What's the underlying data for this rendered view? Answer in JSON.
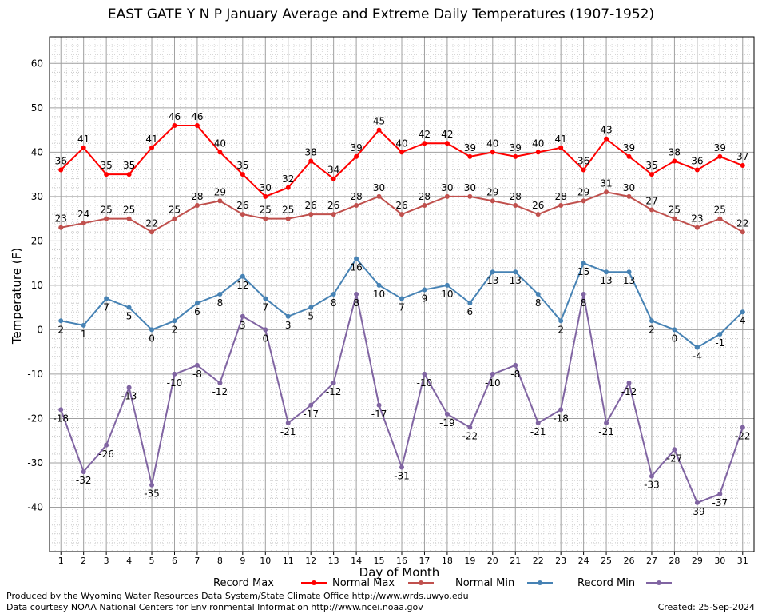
{
  "chart_data": {
    "type": "line",
    "title": "EAST GATE Y N P January Average and Extreme Daily Temperatures (1907-1952)",
    "xlabel": "Day of Month",
    "ylabel": "Temperature (F)",
    "xlim": [
      0.5,
      31.5
    ],
    "ylim": [
      -50,
      66
    ],
    "yticks": [
      -40,
      -30,
      -20,
      -10,
      0,
      10,
      20,
      30,
      40,
      50,
      60
    ],
    "grid": true,
    "x": [
      1,
      2,
      3,
      4,
      5,
      6,
      7,
      8,
      9,
      10,
      11,
      12,
      13,
      14,
      15,
      16,
      17,
      18,
      19,
      20,
      21,
      22,
      23,
      24,
      25,
      26,
      27,
      28,
      29,
      30,
      31
    ],
    "series": [
      {
        "name": "Record Max",
        "color": "#ff0000",
        "values": [
          36,
          41,
          35,
          35,
          41,
          46,
          46,
          40,
          35,
          30,
          32,
          38,
          34,
          39,
          45,
          40,
          42,
          42,
          39,
          40,
          39,
          40,
          41,
          36,
          43,
          39,
          35,
          38,
          36,
          39,
          37
        ]
      },
      {
        "name": "Normal Max",
        "color": "#c0504d",
        "values": [
          23,
          24,
          25,
          25,
          22,
          25,
          28,
          29,
          26,
          25,
          25,
          26,
          26,
          28,
          30,
          26,
          28,
          30,
          30,
          29,
          28,
          26,
          28,
          29,
          31,
          30,
          27,
          25,
          23,
          25,
          22
        ]
      },
      {
        "name": "Normal Min",
        "color": "#4682b4",
        "values": [
          2,
          1,
          7,
          5,
          0,
          2,
          6,
          8,
          12,
          7,
          3,
          5,
          8,
          16,
          10,
          7,
          9,
          10,
          6,
          13,
          13,
          8,
          2,
          15,
          13,
          13,
          2,
          0,
          -4,
          -1,
          4
        ]
      },
      {
        "name": "Record Min",
        "color": "#8064a2",
        "values": [
          -18,
          -32,
          -26,
          -13,
          -35,
          -10,
          -8,
          -12,
          3,
          0,
          -21,
          -17,
          -12,
          8,
          -17,
          -31,
          -10,
          -19,
          -22,
          -10,
          -8,
          -21,
          -18,
          8,
          -21,
          -12,
          -33,
          -27,
          -39,
          -37,
          -22
        ]
      }
    ]
  },
  "footer": {
    "credit1": "Produced by the Wyoming Water Resources Data System/State Climate Office http://www.wrds.uwyo.edu",
    "credit2": "Data courtesy NOAA National Centers for Environmental Information http://www.ncei.noaa.gov",
    "created": "Created:  25-Sep-2024"
  }
}
